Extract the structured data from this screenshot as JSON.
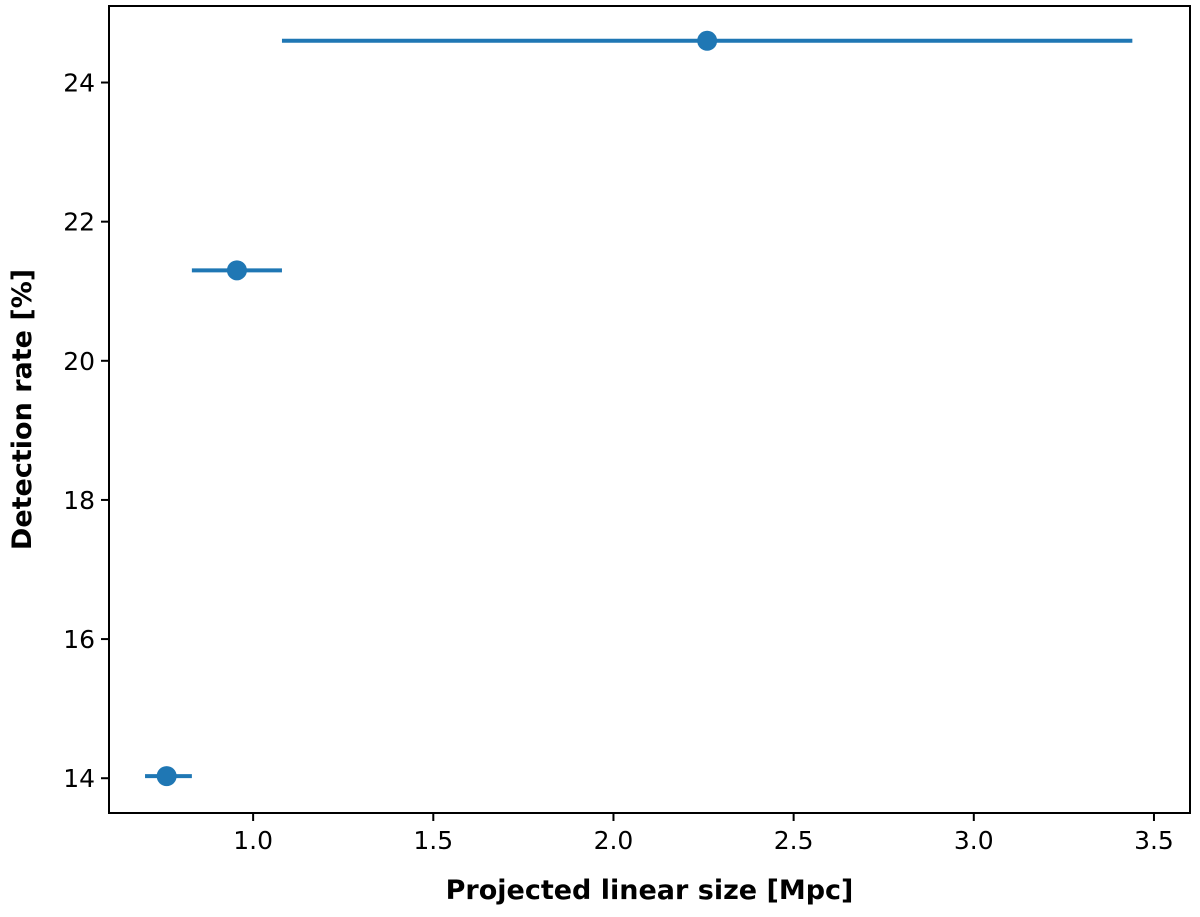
{
  "chart_data": {
    "type": "scatter",
    "title": "",
    "xlabel": "Projected linear size [Mpc]",
    "ylabel": "Detection rate [%]",
    "xlim": [
      0.6,
      3.6
    ],
    "ylim": [
      13.5,
      25.1
    ],
    "xticks": [
      1.0,
      1.5,
      2.0,
      2.5,
      3.0,
      3.5
    ],
    "xtick_labels": [
      "1.0",
      "1.5",
      "2.0",
      "2.5",
      "3.0",
      "3.5"
    ],
    "yticks": [
      14,
      16,
      18,
      20,
      22,
      24
    ],
    "ytick_labels": [
      "14",
      "16",
      "18",
      "20",
      "22",
      "24"
    ],
    "grid": false,
    "legend": "none",
    "series": [
      {
        "color": "#1f77b4",
        "points": [
          {
            "x": 0.76,
            "y": 14.03,
            "xerr_low": 0.7,
            "xerr_high": 0.83
          },
          {
            "x": 0.955,
            "y": 21.3,
            "xerr_low": 0.83,
            "xerr_high": 1.08
          },
          {
            "x": 2.26,
            "y": 24.6,
            "xerr_low": 1.08,
            "xerr_high": 3.44
          }
        ]
      }
    ]
  }
}
